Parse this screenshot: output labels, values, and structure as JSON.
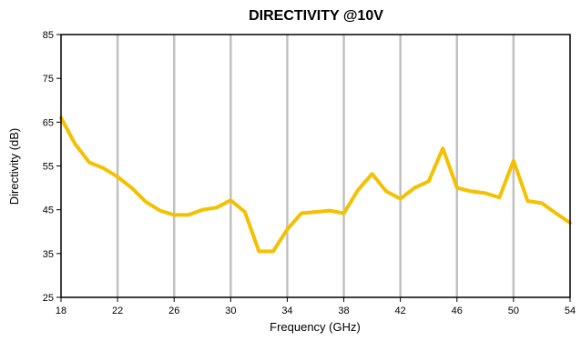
{
  "chart_data": {
    "type": "line",
    "title": "DIRECTIVITY @10V",
    "xlabel": "Frequency (GHz)",
    "ylabel": "Directivity (dB)",
    "xlim": [
      18,
      54
    ],
    "ylim": [
      25,
      85
    ],
    "x_ticks": [
      18,
      22,
      26,
      30,
      34,
      38,
      42,
      46,
      50,
      54
    ],
    "y_ticks": [
      25,
      35,
      45,
      55,
      65,
      75,
      85
    ],
    "grid": "vertical",
    "legend": "none",
    "series": [
      {
        "color": "#f5c000",
        "x": [
          18,
          19,
          20,
          21,
          22,
          23,
          24,
          25,
          26,
          27,
          28,
          29,
          30,
          31,
          32,
          33,
          34,
          35,
          36,
          37,
          38,
          39,
          40,
          41,
          42,
          43,
          44,
          45,
          46,
          47,
          48,
          49,
          50,
          51,
          52,
          53,
          54
        ],
        "y": [
          66,
          60,
          55.8,
          54.5,
          52.5,
          50,
          46.8,
          44.8,
          43.8,
          43.8,
          45,
          45.5,
          47.2,
          44.5,
          35.5,
          35.5,
          40.5,
          44.2,
          44.5,
          44.8,
          44.2,
          49.5,
          53.2,
          49.2,
          47.5,
          50,
          51.5,
          59,
          50,
          49.2,
          48.8,
          47.8,
          56.2,
          47,
          46.5,
          44.2,
          42
        ]
      }
    ]
  }
}
